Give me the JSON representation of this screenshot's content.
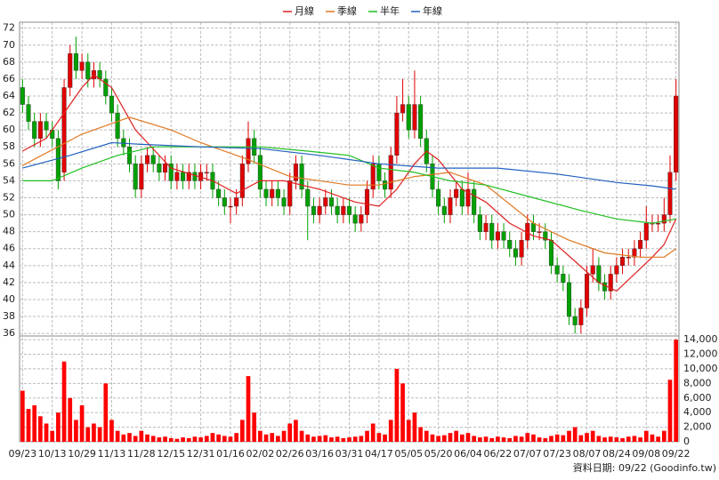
{
  "chart_data": {
    "type": "candlestick",
    "categories": [
      "09/23",
      null,
      null,
      null,
      null,
      "10/13",
      null,
      null,
      null,
      null,
      "10/29",
      null,
      null,
      null,
      null,
      "11/13",
      null,
      null,
      null,
      null,
      "11/28",
      null,
      null,
      null,
      null,
      "12/15",
      null,
      null,
      null,
      null,
      "12/31",
      null,
      null,
      null,
      null,
      "01/16",
      null,
      null,
      null,
      null,
      "02/02",
      null,
      null,
      null,
      null,
      "02/26",
      null,
      null,
      null,
      null,
      "03/16",
      null,
      null,
      null,
      null,
      "03/31",
      null,
      null,
      null,
      null,
      "04/17",
      null,
      null,
      null,
      null,
      "05/05",
      null,
      null,
      null,
      null,
      "05/20",
      null,
      null,
      null,
      null,
      "06/04",
      null,
      null,
      null,
      null,
      "06/22",
      null,
      null,
      null,
      null,
      "07/07",
      null,
      null,
      null,
      null,
      "07/23",
      null,
      null,
      null,
      null,
      "08/07",
      null,
      null,
      null,
      null,
      "08/24",
      null,
      null,
      null,
      null,
      "09/08",
      null,
      null,
      null,
      null,
      "09/22"
    ],
    "open": [
      65,
      63,
      61,
      59,
      61,
      60,
      59,
      55,
      65,
      69,
      67,
      68,
      66,
      67,
      66,
      64,
      62,
      59,
      58,
      56,
      53,
      56,
      57,
      56,
      55,
      56,
      54,
      55,
      54,
      55,
      54,
      55,
      55,
      53,
      52,
      51,
      51,
      52,
      56,
      59,
      57,
      53,
      52,
      53,
      52,
      51,
      54,
      56,
      53,
      51,
      50,
      51,
      52,
      51,
      50,
      51,
      50,
      49,
      50,
      53,
      56,
      54,
      53,
      57,
      62,
      63,
      60,
      63,
      59,
      56,
      53,
      51,
      50,
      52,
      53,
      51,
      53,
      50,
      48,
      49,
      47,
      48,
      47,
      46,
      45,
      47,
      49,
      48,
      48,
      47,
      44,
      43,
      42,
      38,
      37,
      39,
      43,
      44,
      42,
      41,
      43,
      44,
      45,
      45,
      46,
      47,
      49,
      49,
      49,
      50,
      55
    ],
    "high": [
      66,
      64,
      62,
      62,
      62,
      61,
      60,
      66,
      70,
      71,
      69,
      69,
      68,
      68,
      67,
      65,
      63,
      60,
      59,
      57,
      57,
      58,
      58,
      57,
      57,
      57,
      56,
      56,
      56,
      56,
      56,
      56,
      56,
      54,
      53,
      52,
      53,
      57,
      61,
      60,
      58,
      54,
      54,
      54,
      53,
      55,
      57,
      57,
      54,
      52,
      52,
      53,
      53,
      52,
      52,
      52,
      51,
      51,
      54,
      57,
      57,
      55,
      58,
      64,
      66,
      64,
      67,
      64,
      60,
      57,
      54,
      52,
      53,
      54,
      54,
      55,
      54,
      51,
      50,
      50,
      49,
      49,
      48,
      47,
      48,
      50,
      50,
      49,
      49,
      48,
      45,
      44,
      43,
      39,
      40,
      44,
      46,
      45,
      43,
      44,
      45,
      46,
      46,
      47,
      48,
      51,
      50,
      50,
      52,
      57,
      66
    ],
    "low": [
      62,
      60,
      58,
      58,
      59,
      58,
      53,
      54,
      64,
      66,
      66,
      65,
      65,
      65,
      63,
      61,
      58,
      57,
      55,
      52,
      52,
      55,
      55,
      54,
      54,
      53,
      53,
      53,
      53,
      53,
      53,
      54,
      52,
      51,
      50,
      49,
      50,
      51,
      55,
      56,
      52,
      51,
      51,
      51,
      50,
      50,
      53,
      52,
      47,
      49,
      49,
      50,
      50,
      49,
      49,
      49,
      48,
      48,
      49,
      52,
      53,
      52,
      52,
      56,
      61,
      59,
      59,
      58,
      55,
      52,
      50,
      49,
      49,
      51,
      50,
      50,
      49,
      47,
      47,
      46,
      46,
      46,
      45,
      44,
      44,
      46,
      47,
      47,
      46,
      43,
      42,
      41,
      37,
      36,
      36,
      38,
      42,
      41,
      40,
      40,
      42,
      43,
      44,
      44,
      45,
      46,
      48,
      48,
      48,
      49,
      54
    ],
    "close": [
      63,
      61,
      59,
      61,
      60,
      59,
      54,
      65,
      69,
      67,
      68,
      66,
      67,
      66,
      64,
      62,
      59,
      58,
      56,
      53,
      56,
      57,
      56,
      55,
      56,
      54,
      55,
      54,
      55,
      54,
      55,
      55,
      53,
      52,
      51,
      51,
      52,
      56,
      59,
      57,
      53,
      52,
      53,
      52,
      51,
      54,
      56,
      53,
      51,
      50,
      51,
      52,
      51,
      50,
      51,
      50,
      49,
      50,
      53,
      56,
      54,
      53,
      57,
      62,
      63,
      60,
      63,
      59,
      56,
      53,
      51,
      50,
      52,
      53,
      51,
      53,
      50,
      48,
      49,
      47,
      48,
      47,
      46,
      45,
      47,
      49,
      48,
      48,
      47,
      44,
      43,
      42,
      38,
      37,
      39,
      43,
      44,
      42,
      41,
      43,
      44,
      45,
      45,
      46,
      47,
      49,
      49,
      49,
      50,
      55,
      64
    ],
    "up_color": "#e00000",
    "down_color": "#00a000",
    "ylim": [
      35.7,
      72.7
    ],
    "yticks": [
      36,
      38,
      40,
      42,
      44,
      46,
      48,
      50,
      52,
      54,
      56,
      58,
      60,
      62,
      64,
      66,
      68,
      70,
      72
    ],
    "volume": {
      "values": [
        7000,
        4500,
        5000,
        3500,
        2500,
        1500,
        4000,
        11000,
        6000,
        3000,
        5000,
        2000,
        2500,
        2000,
        8000,
        3000,
        1500,
        1000,
        1200,
        800,
        1500,
        1000,
        800,
        600,
        700,
        500,
        400,
        600,
        500,
        700,
        600,
        800,
        1200,
        1000,
        800,
        700,
        1200,
        3000,
        9000,
        4000,
        1500,
        1000,
        1200,
        800,
        1500,
        2500,
        3000,
        1500,
        1000,
        700,
        800,
        900,
        600,
        700,
        500,
        600,
        700,
        800,
        1500,
        2500,
        1200,
        1000,
        3000,
        10000,
        8000,
        3000,
        4000,
        2000,
        1500,
        1000,
        800,
        900,
        1200,
        1500,
        1000,
        1200,
        800,
        600,
        700,
        500,
        700,
        600,
        500,
        800,
        700,
        1200,
        1000,
        600,
        500,
        800,
        1000,
        900,
        1500,
        2000,
        900,
        1200,
        1500,
        800,
        600,
        700,
        600,
        500,
        700,
        800,
        600,
        1500,
        1000,
        700,
        1500,
        8500,
        14000
      ],
      "color": "#ff0000",
      "ylim": [
        0,
        14500
      ],
      "yticks": [
        0,
        {
          "value": 2000,
          "label": "2,000"
        },
        {
          "value": 4000,
          "label": "4,000"
        },
        {
          "value": 6000,
          "label": "6,000"
        },
        {
          "value": 8000,
          "label": "8,000"
        },
        {
          "value": 10000,
          "label": "10,000"
        },
        {
          "value": 12000,
          "label": "12,000"
        },
        {
          "value": 14000,
          "label": "14,000"
        }
      ]
    },
    "series": [
      {
        "name": "月線",
        "color": "#e02020",
        "x": [
          0,
          4,
          7,
          10,
          12,
          15,
          19,
          25,
          32,
          36,
          40,
          44,
          50,
          56,
          60,
          63,
          66,
          68,
          70,
          74,
          78,
          82,
          86,
          89,
          93,
          97,
          100,
          103,
          106,
          108,
          110
        ],
        "values": [
          57.5,
          59,
          62,
          65,
          66.5,
          65,
          60,
          55.5,
          54,
          52.5,
          54,
          54,
          53,
          51.5,
          51,
          53,
          56,
          57.5,
          56.5,
          53,
          51.5,
          49,
          47.5,
          47,
          44.5,
          42,
          41,
          43,
          45,
          46.5,
          49.5
        ]
      },
      {
        "name": "季線",
        "color": "#e07820",
        "x": [
          0,
          10,
          18,
          25,
          30,
          38,
          45,
          55,
          60,
          66,
          72,
          78,
          86,
          92,
          98,
          104,
          108,
          110
        ],
        "values": [
          55.8,
          59.5,
          61.5,
          60,
          58.5,
          56.5,
          54.5,
          53.5,
          53.5,
          54.5,
          55,
          53.5,
          49,
          47,
          45.5,
          45,
          45,
          46
        ]
      },
      {
        "name": "半年",
        "color": "#20c020",
        "x": [
          0,
          5,
          10,
          16,
          22,
          30,
          40,
          48,
          55,
          60,
          66,
          72,
          78,
          86,
          94,
          100,
          106,
          110
        ],
        "values": [
          54,
          54,
          55.5,
          57,
          58,
          58,
          58,
          57.5,
          57,
          55.5,
          55,
          54,
          53.5,
          52,
          50.5,
          49.5,
          49,
          49.5
        ]
      },
      {
        "name": "年線",
        "color": "#2060c0",
        "x": [
          0,
          8,
          15,
          20,
          30,
          40,
          50,
          60,
          70,
          80,
          90,
          100,
          106,
          110
        ],
        "values": [
          55.5,
          57,
          58.5,
          58.3,
          58,
          57.8,
          57,
          56,
          55.5,
          55.5,
          54.8,
          53.8,
          53.4,
          53
        ]
      }
    ],
    "grid": true,
    "source": "資料日期: 09/22  (Goodinfo.tw)"
  }
}
